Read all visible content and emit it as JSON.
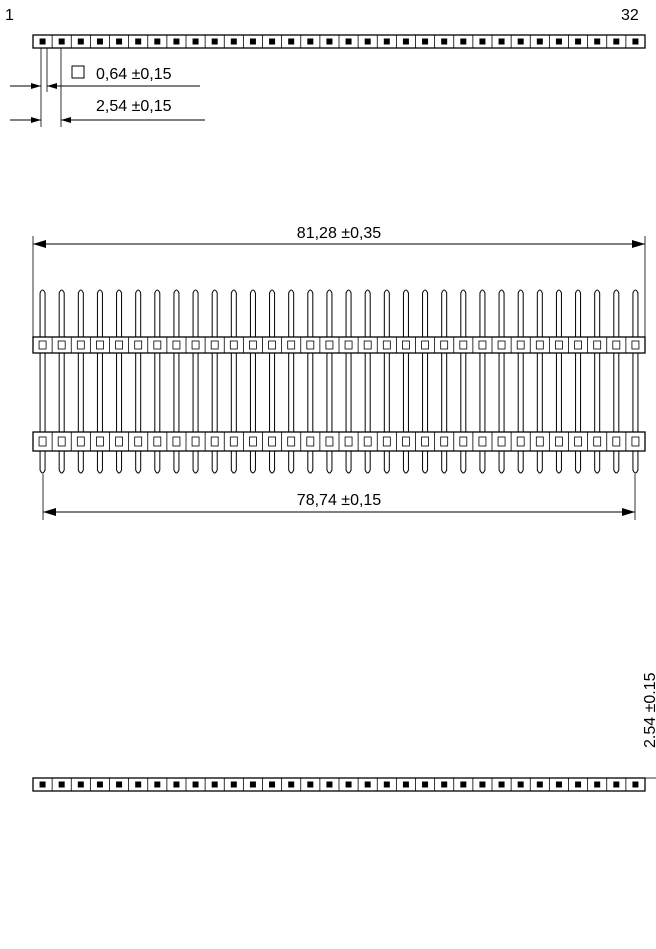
{
  "header": {
    "pin_first": "1",
    "pin_last": "32"
  },
  "top_view": {
    "pin_count": 32,
    "pin_size_label": "0,64 ±0,15",
    "pitch_label": "2,54 ±0,15"
  },
  "front_view": {
    "overall_length_label": "81,28 ±0,35",
    "pin_span_label": "78,74 ±0,15"
  },
  "bottom_view": {
    "spacing_label": "2.54 ±0.15"
  }
}
